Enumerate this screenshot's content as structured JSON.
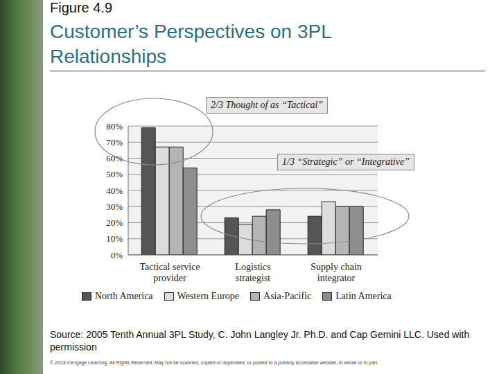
{
  "header": {
    "label": "Figure 4.9",
    "title": "Customer’s Perspectives on 3PL Relationships"
  },
  "source": "Source: 2005 Tenth Annual 3PL Study, C. John Langley Jr. Ph.D. and Cap Gemini LLC. Used with permission",
  "copyright": "© 2013 Cengage Learning. All Rights Reserved. May not be scanned, copied or duplicated, or posted to a publicly accessible website, in whole or in part.",
  "chart_data": {
    "type": "bar",
    "categories": [
      "Tactical service provider",
      "Logistics strategist",
      "Supply chain integrator"
    ],
    "series": [
      {
        "name": "North America",
        "color": "#555555",
        "values": [
          79,
          23,
          24
        ]
      },
      {
        "name": "Western Europe",
        "color": "#dcdcdc",
        "values": [
          67,
          19,
          33
        ]
      },
      {
        "name": "Asia-Pacific",
        "color": "#b4b4b4",
        "values": [
          67,
          24,
          30
        ]
      },
      {
        "name": "Latin America",
        "color": "#8e8e8e",
        "values": [
          54,
          28,
          30
        ]
      }
    ],
    "ylim": [
      0,
      80
    ],
    "yticks": [
      {
        "value": 0,
        "label": "0%"
      },
      {
        "value": 10,
        "label": "10%"
      },
      {
        "value": 20,
        "label": "20%"
      },
      {
        "value": 30,
        "label": "30%"
      },
      {
        "value": 40,
        "label": "40%"
      },
      {
        "value": 50,
        "label": "50%"
      },
      {
        "value": 60,
        "label": "60%"
      },
      {
        "value": 70,
        "label": "70%"
      },
      {
        "value": 80,
        "label": "80%"
      }
    ],
    "grid": true,
    "annotations": [
      "2/3 Thought of as “Tactical”",
      "1/3 “Strategic” or “Integrative”"
    ]
  }
}
